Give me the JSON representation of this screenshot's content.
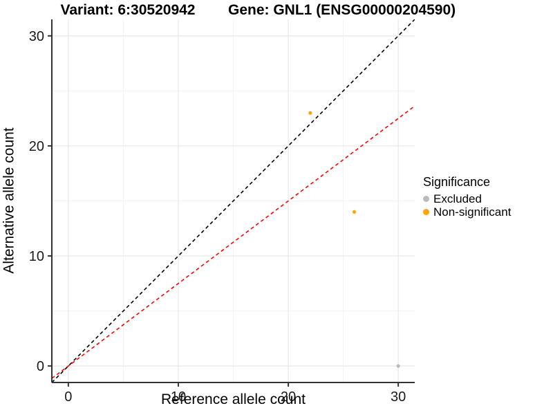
{
  "header": {
    "variant_title": "Variant: 6:30520942",
    "gene_title": "Gene: GNL1 (ENSG00000204590)"
  },
  "chart_data": {
    "type": "scatter",
    "xlabel": "Reference allele count",
    "ylabel": "Alternative allele count",
    "xlim": [
      -1.5,
      31.5
    ],
    "ylim": [
      -1.5,
      31.5
    ],
    "x_ticks": [
      0,
      10,
      20,
      30
    ],
    "y_ticks": [
      0,
      10,
      20,
      30
    ],
    "x_minor": [
      5,
      15,
      25
    ],
    "y_minor": [
      5,
      15,
      25
    ],
    "grid": "major and minor gridlines, white panel, axis lines left+bottom",
    "points": [
      {
        "x": 22,
        "y": 23,
        "group": "Non-significant"
      },
      {
        "x": 26,
        "y": 14,
        "group": "Non-significant"
      },
      {
        "x": 30,
        "y": 0,
        "group": "Excluded"
      }
    ],
    "lines": [
      {
        "name": "identity-line",
        "slope": 1,
        "intercept": 0,
        "color": "#000000",
        "style": "dashed"
      },
      {
        "name": "expected-ratio-line",
        "slope": 0.75,
        "intercept": 0,
        "color": "#FF0000",
        "style": "dashed"
      }
    ],
    "colors": {
      "Excluded": "#BBBBBB",
      "Non-significant": "#FFA500"
    },
    "legend": {
      "title": "Significance",
      "position": "right",
      "items": [
        {
          "label": "Excluded",
          "color": "#BBBBBB"
        },
        {
          "label": "Non-significant",
          "color": "#FFA500"
        }
      ]
    }
  }
}
